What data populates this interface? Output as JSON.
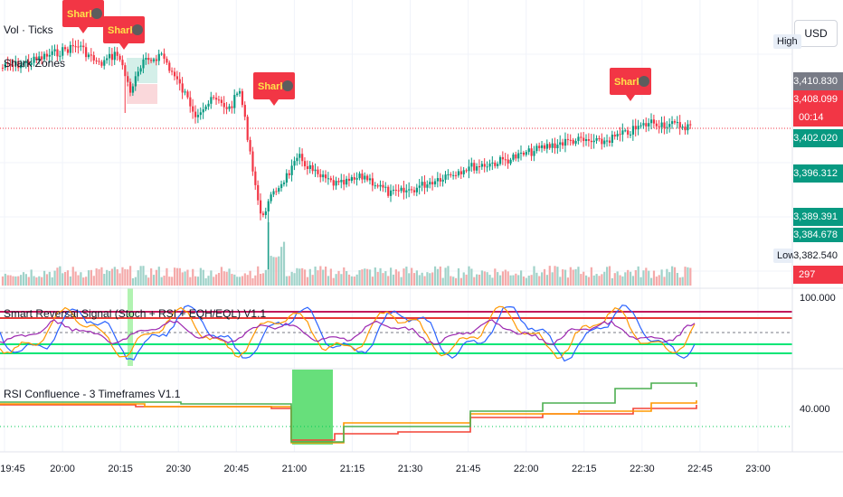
{
  "legends": {
    "main_1": "Vol · Ticks",
    "main_2": "Shark Zones",
    "indicator_1": "Smart Reversal Signal (Stoch + RSI + EQH/EQL) V1.1",
    "indicator_2": "RSI Confluence - 3 Timeframes V1.1"
  },
  "price_axis": {
    "currency": "USD",
    "high_label": "High",
    "low_label": "Low",
    "boxes": [
      {
        "text": "3,410.830",
        "color": "#787b86"
      },
      {
        "text": "3,408.099",
        "color": "#f23645"
      },
      {
        "text": "00:14",
        "color": "#f23645"
      },
      {
        "text": "3,402.020",
        "color": "#089981"
      },
      {
        "text": "3,396.312",
        "color": "#089981"
      },
      {
        "text": "3,389.391",
        "color": "#089981"
      },
      {
        "text": "3,384.678",
        "color": "#089981"
      },
      {
        "text": "3,382.540",
        "color": "#ffffff"
      },
      {
        "text": "297",
        "color": "#f23645"
      }
    ],
    "osc_label": "100.000",
    "rsi_label": "40.000"
  },
  "shark_label": "Shark",
  "time_axis": [
    "19:45",
    "20:00",
    "20:15",
    "20:30",
    "20:45",
    "21:00",
    "21:15",
    "21:30",
    "21:45",
    "22:00",
    "22:15",
    "22:30",
    "22:45",
    "23:00"
  ],
  "colors": {
    "up": "#089981",
    "down": "#f23645",
    "vol_up": "#9fd2c9",
    "vol_down": "#f4a9a9",
    "shark": "#f23645"
  },
  "chart_data": {
    "type": "candlestick",
    "y_axis_prices": [
      3410.83,
      3408.099,
      3402.02,
      3396.312,
      3389.391,
      3384.678,
      3382.54
    ],
    "current_price": 3408.099,
    "session_high": 3410.83,
    "session_low": 3382.54,
    "volume_last": 297,
    "shark_signals_at": [
      "19:58",
      "20:13",
      "20:55",
      "22:25"
    ],
    "oscillator_levels": [
      100
    ],
    "rsi_levels": [
      40
    ],
    "x_range": [
      "19:45",
      "23:00"
    ]
  }
}
